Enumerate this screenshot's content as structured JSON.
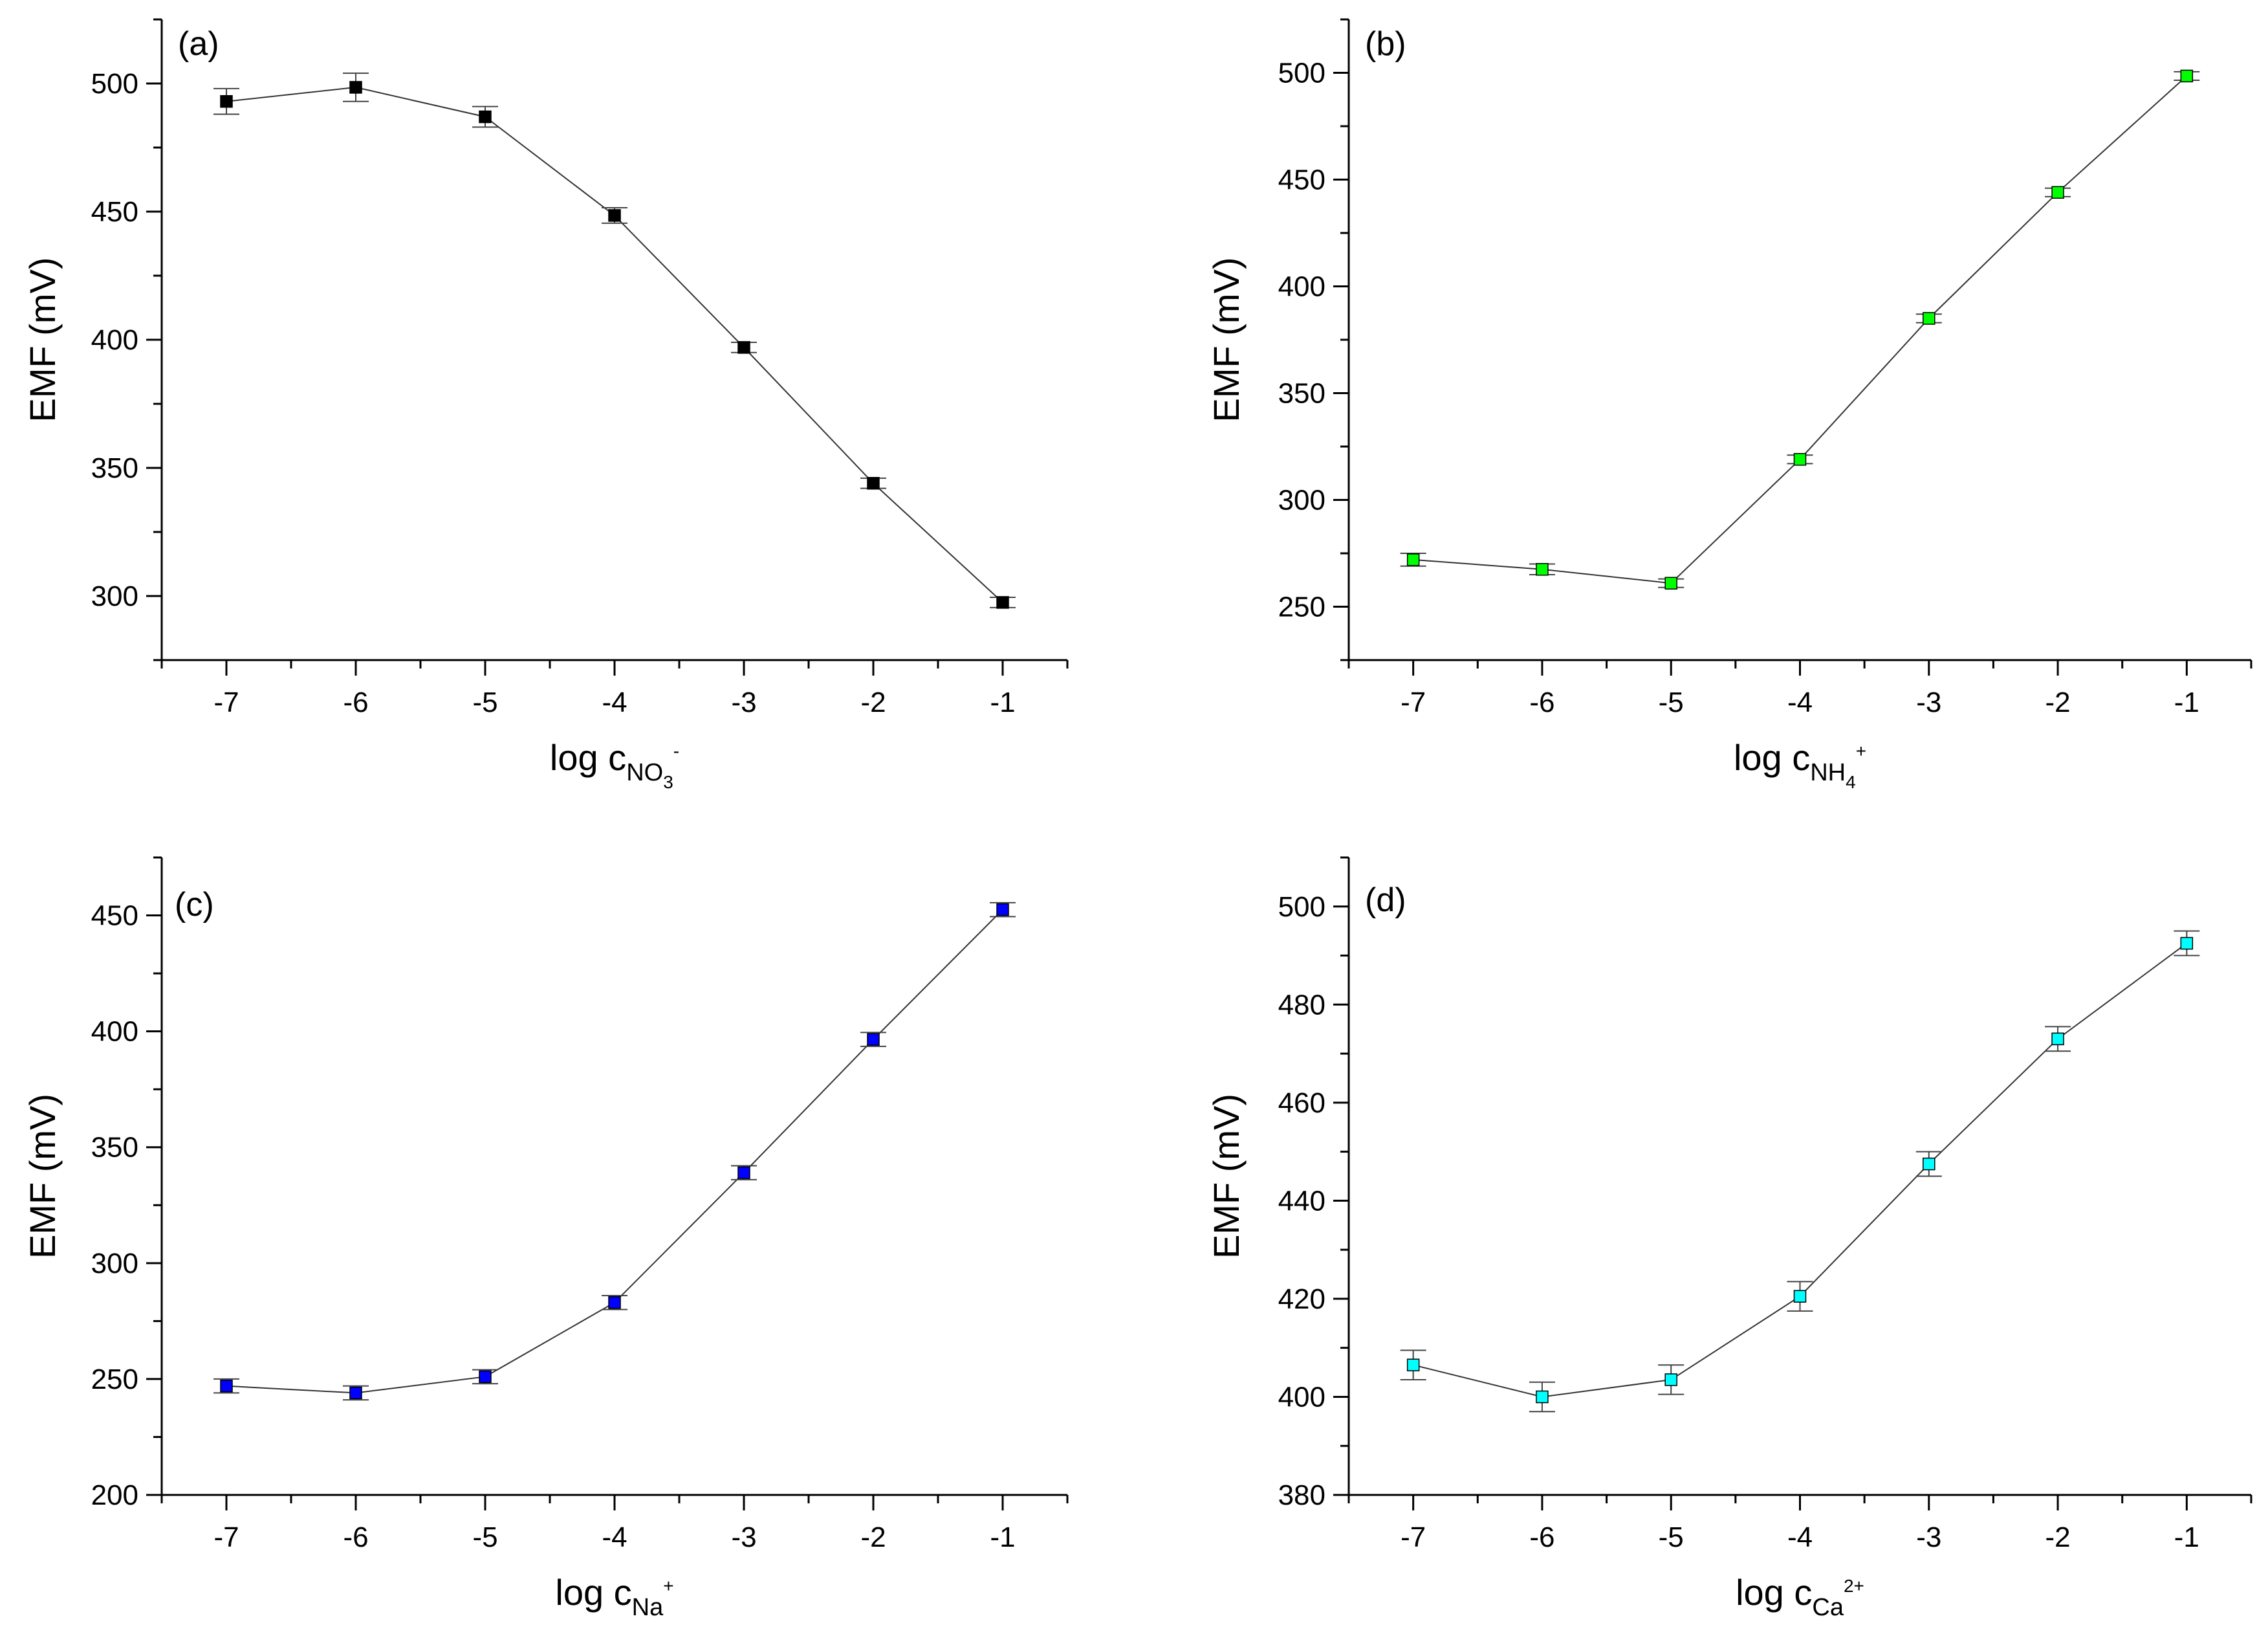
{
  "chart_data": [
    {
      "type": "line",
      "panel_label": "(a)",
      "x": [
        -7,
        -6,
        -5,
        -4,
        -3,
        -2,
        -1
      ],
      "values": [
        493,
        498.5,
        487,
        448.5,
        397,
        344,
        297.5
      ],
      "errors": [
        5,
        5.5,
        4,
        3,
        2,
        2,
        2
      ],
      "color": "#000000",
      "xlim": [
        -7.5,
        -0.5
      ],
      "ylim": [
        275,
        525
      ],
      "xticks": [
        -7,
        -6,
        -5,
        -4,
        -3,
        -2,
        -1
      ],
      "xtick_labels": [
        "-7",
        "-6",
        "-5",
        "-4",
        "-3",
        "-2",
        "-1"
      ],
      "yticks": [
        300,
        350,
        400,
        450,
        500
      ],
      "ytick_labels": [
        "300",
        "350",
        "400",
        "450",
        "500"
      ],
      "ylabel": "EMF (mV)",
      "xlabel": {
        "main": "log c",
        "sub": "NO",
        "subsub": "3",
        "sup": "-"
      }
    },
    {
      "type": "line",
      "panel_label": "(b)",
      "x": [
        -7,
        -6,
        -5,
        -4,
        -3,
        -2,
        -1
      ],
      "values": [
        272,
        267.5,
        261,
        319,
        385,
        444,
        498.5
      ],
      "errors": [
        3,
        2.5,
        2,
        2,
        2,
        2,
        2
      ],
      "color": "#00ff00",
      "xlim": [
        -7.5,
        -0.5
      ],
      "ylim": [
        225,
        525
      ],
      "xticks": [
        -7,
        -6,
        -5,
        -4,
        -3,
        -2,
        -1
      ],
      "xtick_labels": [
        "-7",
        "-6",
        "-5",
        "-4",
        "-3",
        "-2",
        "-1"
      ],
      "yticks": [
        250,
        300,
        350,
        400,
        450,
        500
      ],
      "ytick_labels": [
        "250",
        "300",
        "350",
        "400",
        "450",
        "500"
      ],
      "ylabel": "EMF (mV)",
      "xlabel": {
        "main": "log c",
        "sub": "NH",
        "subsub": "4",
        "sup": "+"
      }
    },
    {
      "type": "line",
      "panel_label": "(c)",
      "x": [
        -7,
        -6,
        -5,
        -4,
        -3,
        -2,
        -1
      ],
      "values": [
        247,
        244,
        251,
        283,
        339,
        396.5,
        452.5
      ],
      "errors": [
        3,
        3,
        3,
        3,
        3,
        3,
        3
      ],
      "color": "#0000ff",
      "xlim": [
        -7.5,
        -0.5
      ],
      "ylim": [
        200,
        475
      ],
      "xticks": [
        -7,
        -6,
        -5,
        -4,
        -3,
        -2,
        -1
      ],
      "xtick_labels": [
        "-7",
        "-6",
        "-5",
        "-4",
        "-3",
        "-2",
        "-1"
      ],
      "yticks": [
        200,
        250,
        300,
        350,
        400,
        450
      ],
      "ytick_labels": [
        "200",
        "250",
        "300",
        "350",
        "400",
        "450"
      ],
      "ylabel": "EMF (mV)",
      "xlabel": {
        "main": "log c",
        "sub": "Na",
        "subsub": "",
        "sup": "+"
      }
    },
    {
      "type": "line",
      "panel_label": "(d)",
      "x": [
        -7,
        -6,
        -5,
        -4,
        -3,
        -2,
        -1
      ],
      "values": [
        406.5,
        400,
        403.5,
        420.5,
        447.5,
        473,
        492.5
      ],
      "errors": [
        3,
        3,
        3,
        3,
        2.5,
        2.5,
        2.5
      ],
      "color": "#00ffff",
      "xlim": [
        -7.5,
        -0.5
      ],
      "ylim": [
        380,
        510
      ],
      "xticks": [
        -7,
        -6,
        -5,
        -4,
        -3,
        -2,
        -1
      ],
      "xtick_labels": [
        "-7",
        "-6",
        "-5",
        "-4",
        "-3",
        "-2",
        "-1"
      ],
      "yticks": [
        380,
        400,
        420,
        440,
        460,
        480,
        500
      ],
      "ytick_labels": [
        "380",
        "400",
        "420",
        "440",
        "460",
        "480",
        "500"
      ],
      "ylabel": "EMF (mV)",
      "xlabel": {
        "main": "log c",
        "sub": "Ca",
        "subsub": "",
        "sup": "2+"
      }
    }
  ]
}
